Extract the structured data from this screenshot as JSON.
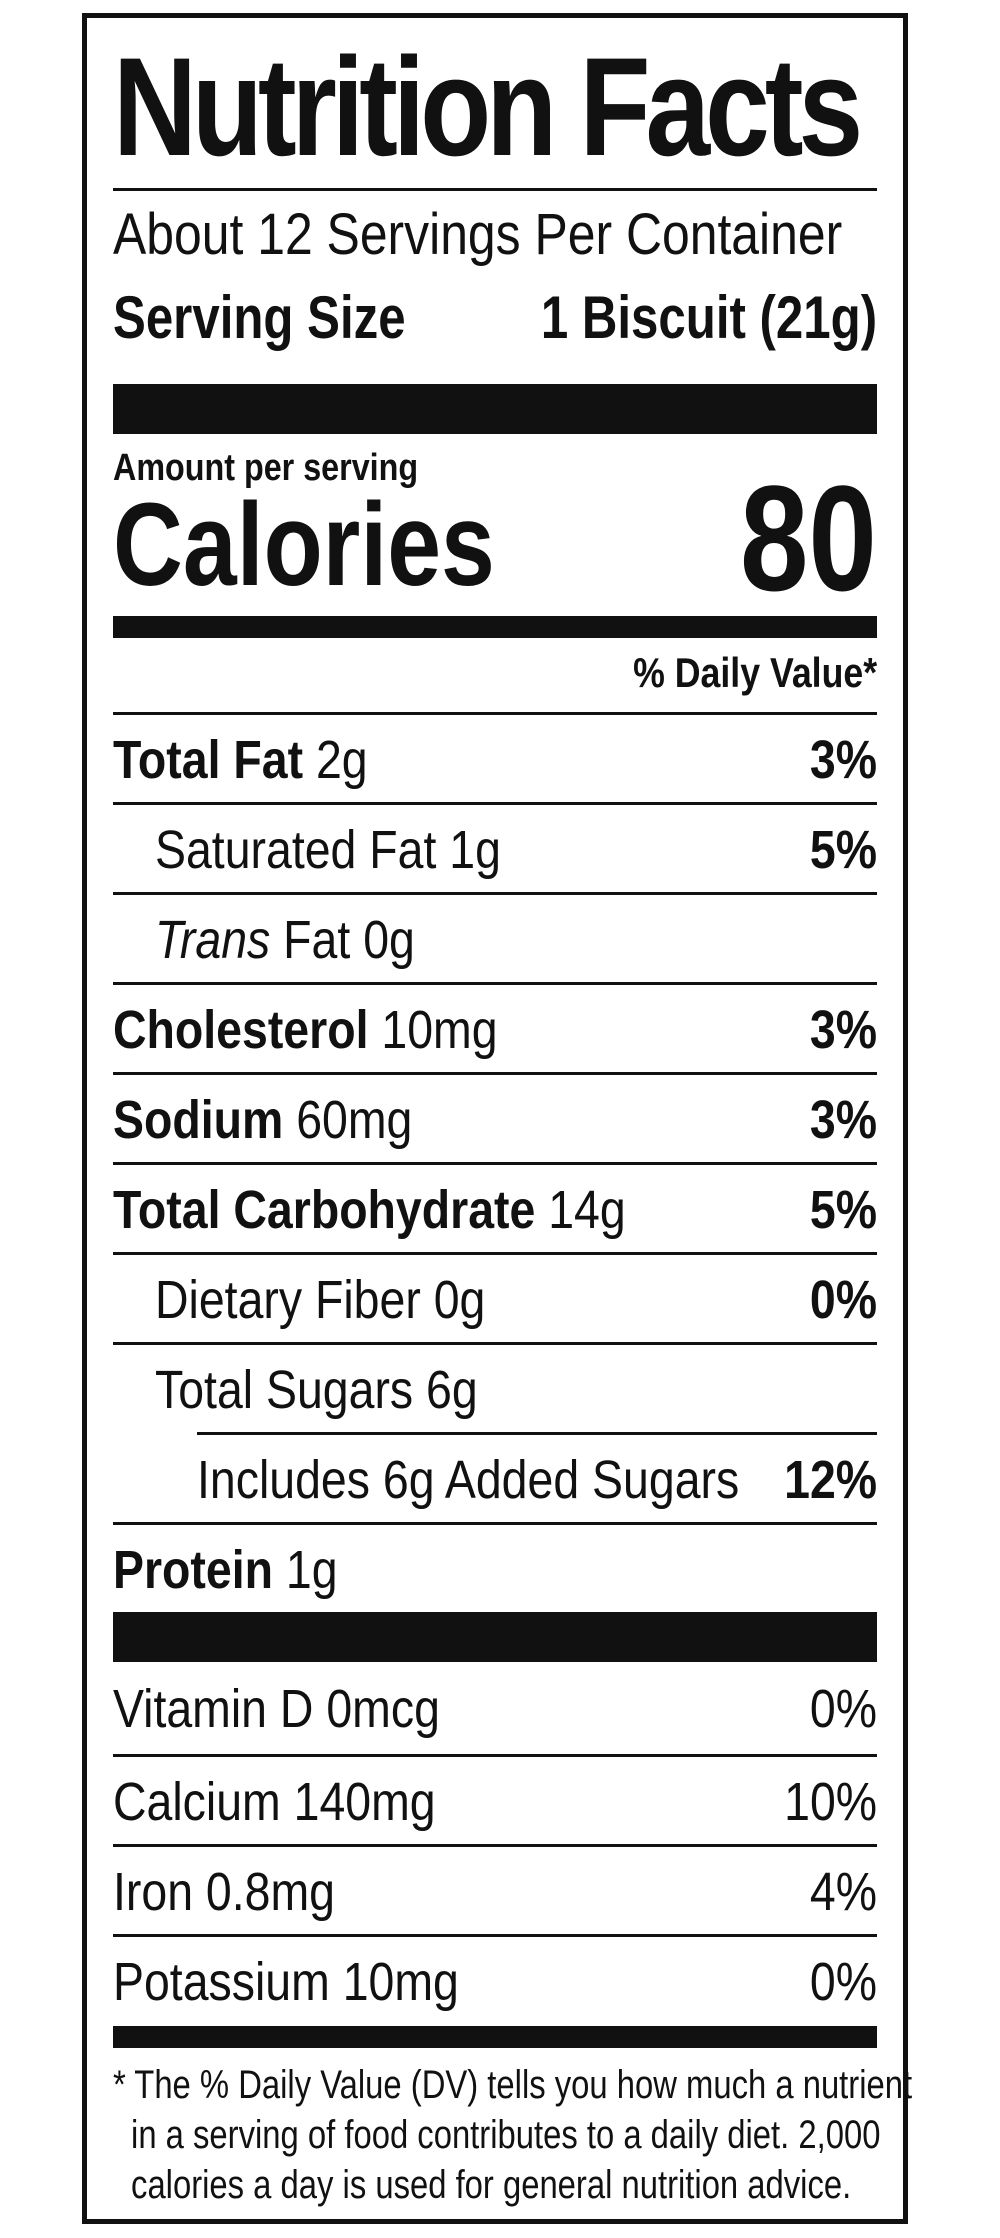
{
  "title": "Nutrition Facts",
  "servings_per_container": "About 12 Servings Per Container",
  "serving_size": {
    "label": "Serving Size",
    "value": "1 Biscuit (21g)"
  },
  "amount_per_serving": "Amount per serving",
  "calories": {
    "label": "Calories",
    "value": "80"
  },
  "daily_value_header": "% Daily Value*",
  "nutrients": [
    {
      "name": "Total Fat",
      "amount": "2g",
      "dv": "3%"
    },
    {
      "name": "Saturated Fat",
      "amount": "1g",
      "dv": "5%"
    },
    {
      "name_italic": "Trans",
      "name": "Fat",
      "amount": "0g",
      "dv": ""
    },
    {
      "name": "Cholesterol",
      "amount": "10mg",
      "dv": "3%"
    },
    {
      "name": "Sodium",
      "amount": "60mg",
      "dv": "3%"
    },
    {
      "name": "Total Carbohydrate",
      "amount": "14g",
      "dv": "5%"
    },
    {
      "name": "Dietary Fiber",
      "amount": "0g",
      "dv": "0%"
    },
    {
      "name": "Total Sugars",
      "amount": "6g",
      "dv": ""
    },
    {
      "name": "Includes 6g Added Sugars",
      "amount": "",
      "dv": "12%"
    },
    {
      "name": "Protein",
      "amount": "1g",
      "dv": ""
    }
  ],
  "vitamins": [
    {
      "text": "Vitamin D 0mcg",
      "dv": "0%"
    },
    {
      "text": "Calcium 140mg",
      "dv": "10%"
    },
    {
      "text": "Iron 0.8mg",
      "dv": "4%"
    },
    {
      "text": "Potassium 10mg",
      "dv": "0%"
    }
  ],
  "footnote": [
    "* The % Daily Value (DV) tells you how much a nutrient",
    "in a serving of food contributes to a daily diet. 2,000",
    "calories a day is used for general nutrition advice."
  ]
}
